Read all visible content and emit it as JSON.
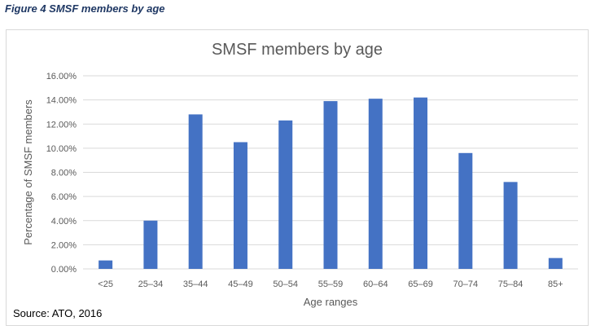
{
  "figure_caption": "Figure 4 SMSF members by age",
  "source": "Source: ATO, 2016",
  "colors": {
    "bar": "#4472c4",
    "grid": "#d9d9d9",
    "text": "#595959",
    "caption": "#1f3864"
  },
  "chart_data": {
    "type": "bar",
    "title": "SMSF members by age",
    "xlabel": "Age ranges",
    "ylabel": "Percentage of SMSF members",
    "categories": [
      "<25",
      "25–34",
      "35–44",
      "45–49",
      "50–54",
      "55–59",
      "60–64",
      "65–69",
      "70–74",
      "75–84",
      "85+"
    ],
    "values": [
      0.7,
      4.0,
      12.8,
      10.5,
      12.3,
      13.9,
      14.1,
      14.2,
      9.6,
      7.2,
      0.9
    ],
    "yticks": [
      "0.00%",
      "2.00%",
      "4.00%",
      "6.00%",
      "8.00%",
      "10.00%",
      "12.00%",
      "14.00%",
      "16.00%"
    ],
    "ylim": [
      0,
      16
    ],
    "grid": true,
    "legend": "none"
  }
}
